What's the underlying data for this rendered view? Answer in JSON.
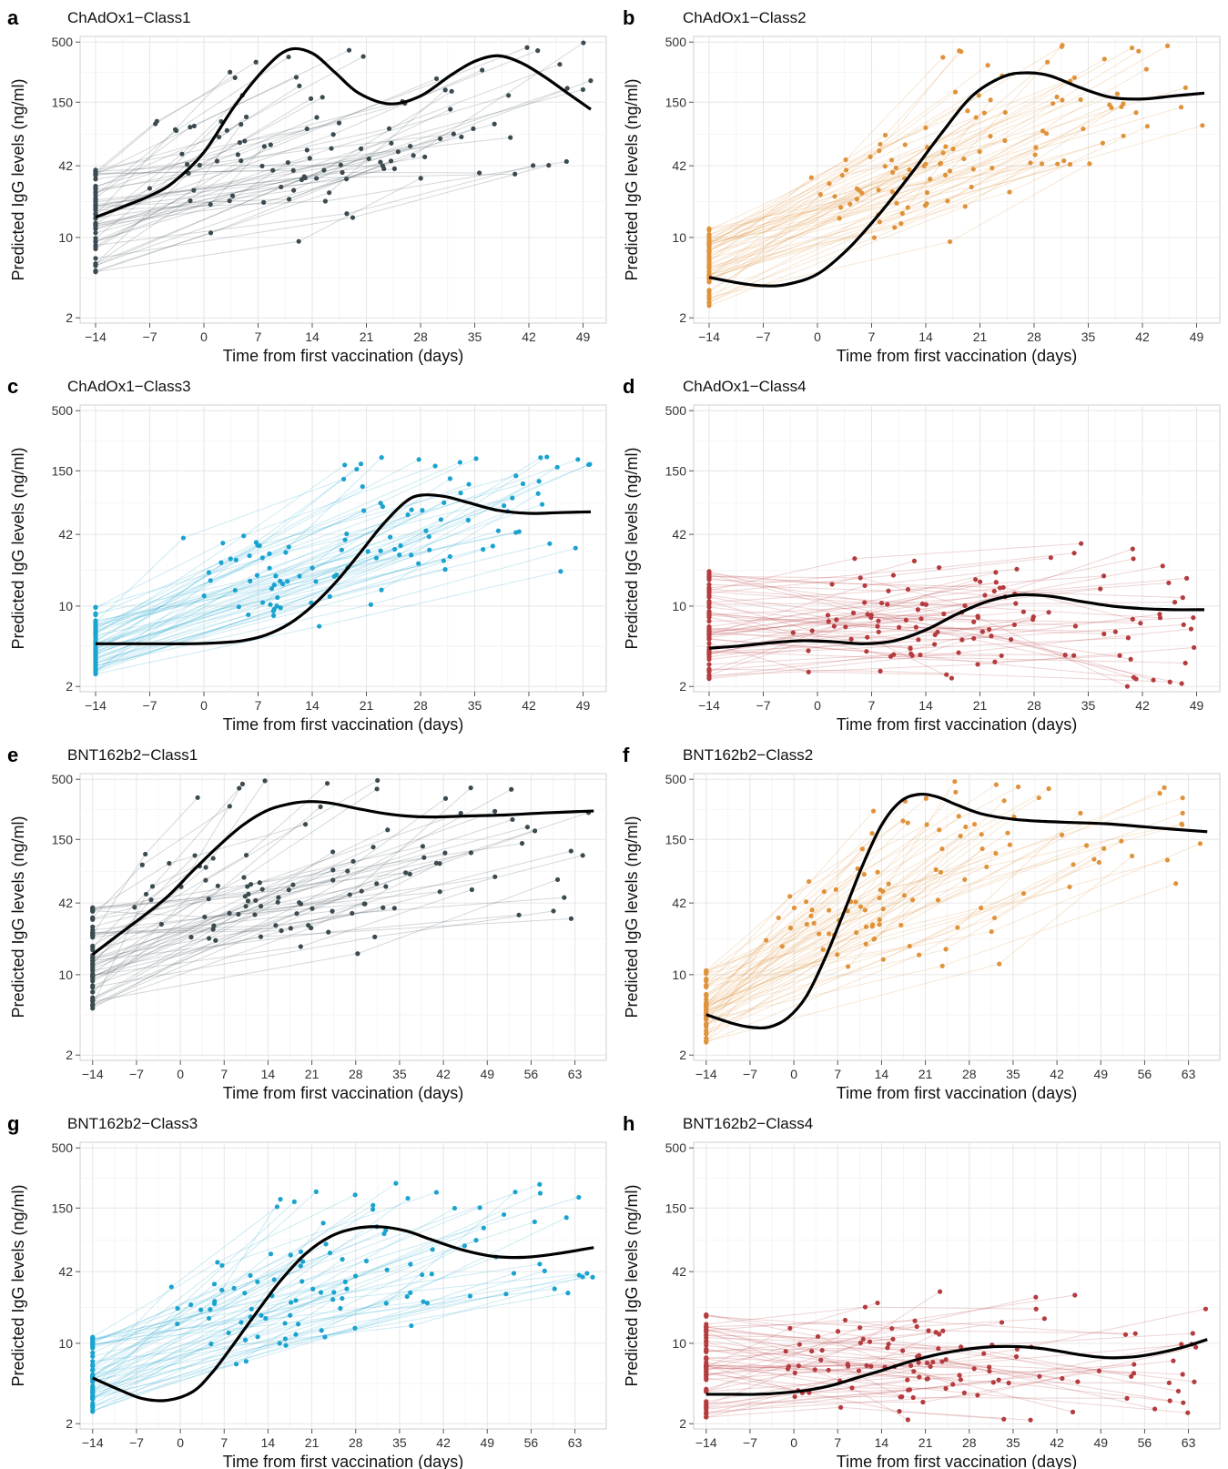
{
  "figure": {
    "panels": [
      {
        "letter": "a",
        "title": "ChAdOx1−Class1"
      },
      {
        "letter": "b",
        "title": "ChAdOx1−Class2"
      },
      {
        "letter": "c",
        "title": "ChAdOx1−Class3"
      },
      {
        "letter": "d",
        "title": "ChAdOx1−Class4"
      },
      {
        "letter": "e",
        "title": "BNT162b2−Class1"
      },
      {
        "letter": "f",
        "title": "BNT162b2−Class2"
      },
      {
        "letter": "g",
        "title": "BNT162b2−Class3"
      },
      {
        "letter": "h",
        "title": "BNT162b2−Class4"
      }
    ]
  },
  "colors": {
    "class1": "#3b4a50",
    "class2": "#e0923a",
    "class3": "#1aa3cf",
    "class4": "#b43b3e",
    "mean_curve": "#000000",
    "grid": "#e6e6e6",
    "panel_border": "#cfcfcf"
  },
  "chart_data": [
    {
      "type": "scatter",
      "panel": "a",
      "title": "ChAdOx1−Class1",
      "xlabel": "Time from first vaccination (days)",
      "ylabel": "Predicted IgG levels (ng/ml)",
      "y_scale": "log",
      "xlim": [
        -16,
        52
      ],
      "ylim": [
        1.8,
        560
      ],
      "x_ticks": [
        -14,
        -7,
        0,
        7,
        14,
        21,
        28,
        35,
        42,
        49
      ],
      "x_tick_labels": [
        "−14",
        "−7",
        "0",
        "7",
        "14",
        "21",
        "28",
        "35",
        "42",
        "49"
      ],
      "y_ticks": [
        2,
        10,
        42,
        150,
        500
      ],
      "y_tick_labels": [
        "2",
        "10",
        "42",
        "150",
        "500"
      ],
      "grid": true,
      "color_key": "class1",
      "mean_curve": {
        "x": [
          -14,
          -10,
          -7,
          -4,
          0,
          4,
          8,
          11,
          14,
          17,
          20,
          24,
          28,
          32,
          35,
          38,
          41,
          44,
          47,
          50
        ],
        "y": [
          15,
          19,
          23,
          30,
          55,
          140,
          300,
          430,
          400,
          270,
          180,
          145,
          170,
          260,
          340,
          380,
          330,
          250,
          180,
          130
        ]
      },
      "individual_trajectories": {
        "n": 55,
        "start": [
          -14,
          5,
          40
        ],
        "plateau_x": [
          2,
          50
        ],
        "plateau_y": [
          30,
          500
        ]
      }
    },
    {
      "type": "scatter",
      "panel": "b",
      "title": "ChAdOx1−Class2",
      "xlabel": "Time from first vaccination (days)",
      "ylabel": "Predicted IgG levels (ng/ml)",
      "y_scale": "log",
      "xlim": [
        -16,
        52
      ],
      "ylim": [
        1.8,
        560
      ],
      "x_ticks": [
        -14,
        -7,
        0,
        7,
        14,
        21,
        28,
        35,
        42,
        49
      ],
      "x_tick_labels": [
        "−14",
        "−7",
        "0",
        "7",
        "14",
        "21",
        "28",
        "35",
        "42",
        "49"
      ],
      "y_ticks": [
        2,
        10,
        42,
        150,
        500
      ],
      "y_tick_labels": [
        "2",
        "10",
        "42",
        "150",
        "500"
      ],
      "grid": true,
      "color_key": "class2",
      "mean_curve": {
        "x": [
          -14,
          -10,
          -7,
          -4,
          0,
          4,
          8,
          12,
          16,
          20,
          24,
          27,
          30,
          34,
          38,
          42,
          46,
          50
        ],
        "y": [
          4.5,
          4,
          3.8,
          3.9,
          4.8,
          8,
          16,
          35,
          80,
          170,
          250,
          270,
          255,
          200,
          165,
          160,
          170,
          180
        ]
      },
      "individual_trajectories": {
        "n": 55,
        "start": [
          -14,
          2.5,
          12
        ],
        "plateau_x": [
          14,
          50
        ],
        "plateau_y": [
          40,
          500
        ]
      }
    },
    {
      "type": "scatter",
      "panel": "c",
      "title": "ChAdOx1−Class3",
      "xlabel": "Time from first vaccination (days)",
      "ylabel": "Predicted IgG levels (ng/ml)",
      "y_scale": "log",
      "xlim": [
        -16,
        52
      ],
      "ylim": [
        1.8,
        560
      ],
      "x_ticks": [
        -14,
        -7,
        0,
        7,
        14,
        21,
        28,
        35,
        42,
        49
      ],
      "x_tick_labels": [
        "−14",
        "−7",
        "0",
        "7",
        "14",
        "21",
        "28",
        "35",
        "42",
        "49"
      ],
      "y_ticks": [
        2,
        10,
        42,
        150,
        500
      ],
      "y_tick_labels": [
        "2",
        "10",
        "42",
        "150",
        "500"
      ],
      "grid": true,
      "color_key": "class3",
      "mean_curve": {
        "x": [
          -14,
          -10,
          -6,
          -2,
          2,
          5,
          8,
          11,
          14,
          17,
          20,
          23,
          26,
          28,
          31,
          34,
          38,
          42,
          46,
          50
        ],
        "y": [
          4.7,
          4.7,
          4.7,
          4.7,
          4.8,
          5,
          5.6,
          7,
          10,
          16,
          28,
          50,
          80,
          92,
          90,
          80,
          68,
          64,
          65,
          66
        ]
      },
      "individual_trajectories": {
        "n": 55,
        "start": [
          -14,
          2.5,
          10
        ],
        "plateau_x": [
          18,
          50
        ],
        "plateau_y": [
          20,
          200
        ]
      }
    },
    {
      "type": "scatter",
      "panel": "d",
      "title": "ChAdOx1−Class4",
      "xlabel": "Time from first vaccination (days)",
      "ylabel": "Predicted IgG levels (ng/ml)",
      "y_scale": "log",
      "xlim": [
        -16,
        52
      ],
      "ylim": [
        1.8,
        560
      ],
      "x_ticks": [
        -14,
        -7,
        0,
        7,
        14,
        21,
        28,
        35,
        42,
        49
      ],
      "x_tick_labels": [
        "−14",
        "−7",
        "0",
        "7",
        "14",
        "21",
        "28",
        "35",
        "42",
        "49"
      ],
      "y_ticks": [
        2,
        10,
        42,
        150,
        500
      ],
      "y_tick_labels": [
        "2",
        "10",
        "42",
        "150",
        "500"
      ],
      "grid": true,
      "color_key": "class4",
      "mean_curve": {
        "x": [
          -14,
          -10,
          -6,
          -2,
          2,
          6,
          10,
          14,
          18,
          22,
          26,
          30,
          34,
          38,
          42,
          46,
          50
        ],
        "y": [
          4.3,
          4.5,
          4.8,
          5,
          4.9,
          4.7,
          5,
          6.2,
          8.5,
          11,
          12.5,
          12.2,
          11,
          10,
          9.5,
          9.3,
          9.3
        ]
      },
      "individual_trajectories": {
        "n": 60,
        "start": [
          -14,
          2.2,
          20
        ],
        "plateau_x": [
          10,
          50
        ],
        "plateau_y": [
          2,
          35
        ]
      }
    },
    {
      "type": "scatter",
      "panel": "e",
      "title": "BNT162b2−Class1",
      "xlabel": "Time from first vaccination (days)",
      "ylabel": "Predicted IgG levels (ng/ml)",
      "y_scale": "log",
      "xlim": [
        -16,
        68
      ],
      "ylim": [
        1.8,
        560
      ],
      "x_ticks": [
        -14,
        -7,
        0,
        7,
        14,
        21,
        28,
        35,
        42,
        49,
        56,
        63
      ],
      "x_tick_labels": [
        "−14",
        "−7",
        "0",
        "7",
        "14",
        "21",
        "28",
        "35",
        "42",
        "49",
        "56",
        "63"
      ],
      "y_ticks": [
        2,
        10,
        42,
        150,
        500
      ],
      "y_tick_labels": [
        "2",
        "10",
        "42",
        "150",
        "500"
      ],
      "grid": true,
      "color_key": "class1",
      "mean_curve": {
        "x": [
          -14,
          -10,
          -6,
          -2,
          2,
          6,
          10,
          14,
          18,
          21,
          24,
          28,
          32,
          36,
          40,
          46,
          52,
          58,
          66
        ],
        "y": [
          15,
          22,
          32,
          48,
          80,
          130,
          200,
          270,
          310,
          320,
          310,
          280,
          255,
          240,
          235,
          240,
          245,
          255,
          265
        ]
      },
      "individual_trajectories": {
        "n": 55,
        "start": [
          -14,
          5,
          40
        ],
        "plateau_x": [
          2,
          66
        ],
        "plateau_y": [
          30,
          500
        ]
      }
    },
    {
      "type": "scatter",
      "panel": "f",
      "title": "BNT162b2−Class2",
      "xlabel": "Time from first vaccination (days)",
      "ylabel": "Predicted IgG levels (ng/ml)",
      "y_scale": "log",
      "xlim": [
        -16,
        68
      ],
      "ylim": [
        1.8,
        560
      ],
      "x_ticks": [
        -14,
        -7,
        0,
        7,
        14,
        21,
        28,
        35,
        42,
        49,
        56,
        63
      ],
      "x_tick_labels": [
        "−14",
        "−7",
        "0",
        "7",
        "14",
        "21",
        "28",
        "35",
        "42",
        "49",
        "56",
        "63"
      ],
      "y_ticks": [
        2,
        10,
        42,
        150,
        500
      ],
      "y_tick_labels": [
        "2",
        "10",
        "42",
        "150",
        "500"
      ],
      "grid": true,
      "color_key": "class2",
      "mean_curve": {
        "x": [
          -14,
          -10,
          -7,
          -4,
          -1,
          2,
          5,
          8,
          11,
          14,
          17,
          20,
          23,
          26,
          30,
          35,
          40,
          45,
          50,
          55,
          60,
          66
        ],
        "y": [
          4.5,
          3.8,
          3.5,
          3.5,
          4.2,
          6.5,
          14,
          35,
          90,
          200,
          320,
          370,
          350,
          300,
          250,
          225,
          215,
          210,
          205,
          195,
          185,
          175
        ]
      },
      "individual_trajectories": {
        "n": 55,
        "start": [
          -14,
          2.5,
          12
        ],
        "plateau_x": [
          10,
          66
        ],
        "plateau_y": [
          50,
          500
        ]
      }
    },
    {
      "type": "scatter",
      "panel": "g",
      "title": "BNT162b2−Class3",
      "xlabel": "Time from first vaccination (days)",
      "ylabel": "Predicted IgG levels (ng/ml)",
      "y_scale": "log",
      "xlim": [
        -16,
        68
      ],
      "ylim": [
        1.8,
        560
      ],
      "x_ticks": [
        -14,
        -7,
        0,
        7,
        14,
        21,
        28,
        35,
        42,
        49,
        56,
        63
      ],
      "x_tick_labels": [
        "−14",
        "−7",
        "0",
        "7",
        "14",
        "21",
        "28",
        "35",
        "42",
        "49",
        "56",
        "63"
      ],
      "y_ticks": [
        2,
        10,
        42,
        150,
        500
      ],
      "y_tick_labels": [
        "2",
        "10",
        "42",
        "150",
        "500"
      ],
      "grid": true,
      "color_key": "class3",
      "mean_curve": {
        "x": [
          -14,
          -10,
          -6,
          -2,
          2,
          5,
          8,
          12,
          16,
          20,
          24,
          28,
          32,
          36,
          40,
          45,
          50,
          55,
          60,
          66
        ],
        "y": [
          5,
          4,
          3.3,
          3.2,
          3.8,
          5.5,
          9,
          18,
          35,
          60,
          85,
          100,
          103,
          95,
          80,
          65,
          57,
          56,
          60,
          68
        ]
      },
      "individual_trajectories": {
        "n": 55,
        "start": [
          -14,
          2.5,
          12
        ],
        "plateau_x": [
          14,
          66
        ],
        "plateau_y": [
          20,
          250
        ]
      }
    },
    {
      "type": "scatter",
      "panel": "h",
      "title": "BNT162b2−Class4",
      "xlabel": "Time from first vaccination (days)",
      "ylabel": "Predicted IgG levels (ng/ml)",
      "y_scale": "log",
      "xlim": [
        -16,
        68
      ],
      "ylim": [
        1.8,
        560
      ],
      "x_ticks": [
        -14,
        -7,
        0,
        7,
        14,
        21,
        28,
        35,
        42,
        49,
        56,
        63
      ],
      "x_tick_labels": [
        "−14",
        "−7",
        "0",
        "7",
        "14",
        "21",
        "28",
        "35",
        "42",
        "49",
        "56",
        "63"
      ],
      "y_ticks": [
        2,
        10,
        42,
        150,
        500
      ],
      "y_tick_labels": [
        "2",
        "10",
        "42",
        "150",
        "500"
      ],
      "grid": true,
      "color_key": "class4",
      "mean_curve": {
        "x": [
          -14,
          -10,
          -6,
          -2,
          2,
          6,
          10,
          14,
          18,
          22,
          26,
          30,
          34,
          38,
          42,
          46,
          50,
          54,
          58,
          62,
          66
        ],
        "y": [
          3.6,
          3.6,
          3.6,
          3.7,
          3.9,
          4.3,
          5,
          5.8,
          6.8,
          7.8,
          8.6,
          9.2,
          9.4,
          9.2,
          8.6,
          7.9,
          7.5,
          7.6,
          8.2,
          9.2,
          10.8
        ]
      },
      "individual_trajectories": {
        "n": 60,
        "start": [
          -14,
          2.2,
          18
        ],
        "plateau_x": [
          10,
          66
        ],
        "plateau_y": [
          2,
          30
        ]
      }
    }
  ]
}
